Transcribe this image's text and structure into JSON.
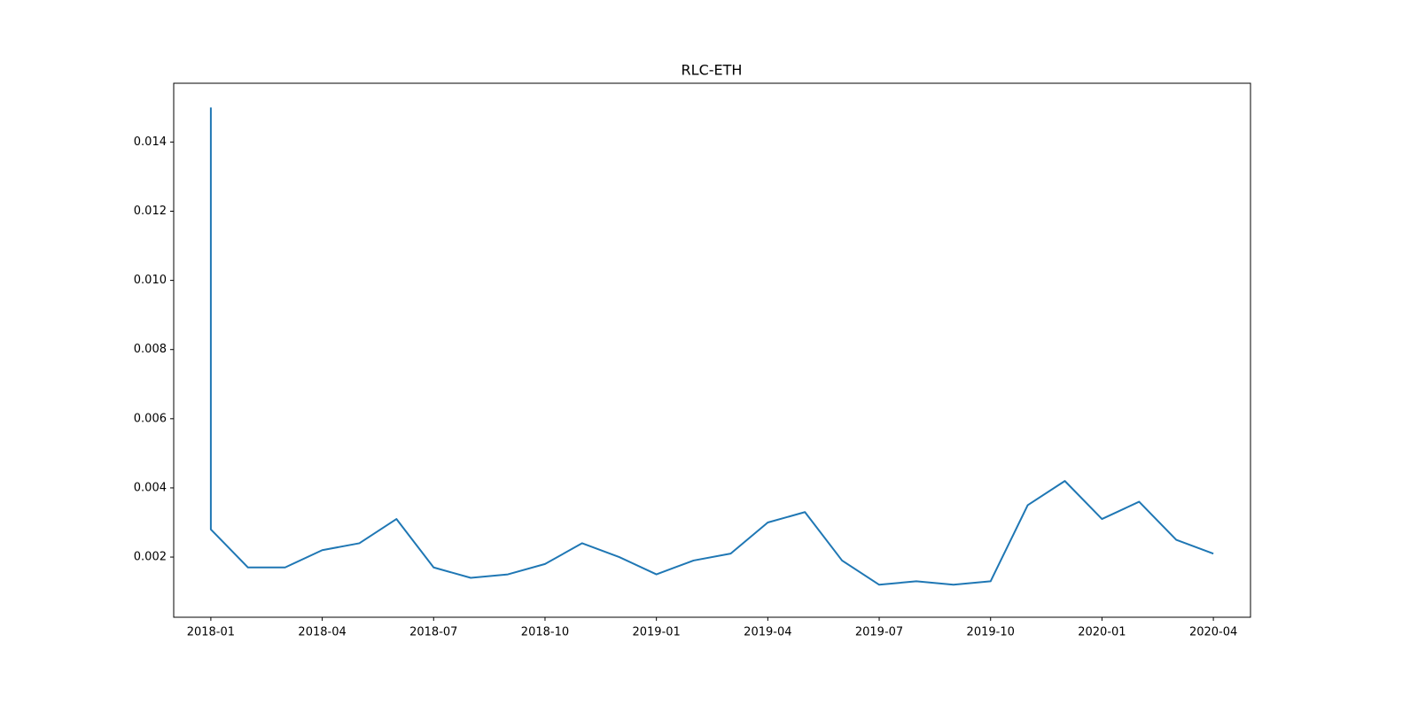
{
  "chart_data": {
    "type": "line",
    "title": "RLC-ETH",
    "x": [
      "2018-01",
      "2018-01",
      "2018-02",
      "2018-03",
      "2018-04",
      "2018-05",
      "2018-06",
      "2018-07",
      "2018-08",
      "2018-09",
      "2018-10",
      "2018-11",
      "2018-12",
      "2019-01",
      "2019-02",
      "2019-03",
      "2019-04",
      "2019-05",
      "2019-06",
      "2019-07",
      "2019-08",
      "2019-09",
      "2019-10",
      "2019-11",
      "2019-12",
      "2020-01",
      "2020-02",
      "2020-03",
      "2020-04"
    ],
    "series": [
      {
        "name": "RLC-ETH",
        "color": "#1f77b4",
        "values": [
          0.015,
          0.0028,
          0.0017,
          0.0017,
          0.0022,
          0.0024,
          0.0031,
          0.0017,
          0.0014,
          0.0015,
          0.0018,
          0.0024,
          0.002,
          0.0015,
          0.0019,
          0.0021,
          0.003,
          0.0033,
          0.0019,
          0.0012,
          0.0013,
          0.0012,
          0.0013,
          0.0035,
          0.0042,
          0.0031,
          0.0036,
          0.0025,
          0.0021
        ]
      }
    ],
    "xlim": [
      "2017-12",
      "2020-05"
    ],
    "xticks": [
      "2018-01",
      "2018-04",
      "2018-07",
      "2018-10",
      "2019-01",
      "2019-04",
      "2019-07",
      "2019-10",
      "2020-01",
      "2020-04"
    ],
    "ylim": [
      0.00026,
      0.0157
    ],
    "yticks": [
      0.002,
      0.004,
      0.006,
      0.008,
      {
        "value": 0.01,
        "label": "0.010"
      },
      0.012,
      0.014
    ],
    "grid": false
  }
}
